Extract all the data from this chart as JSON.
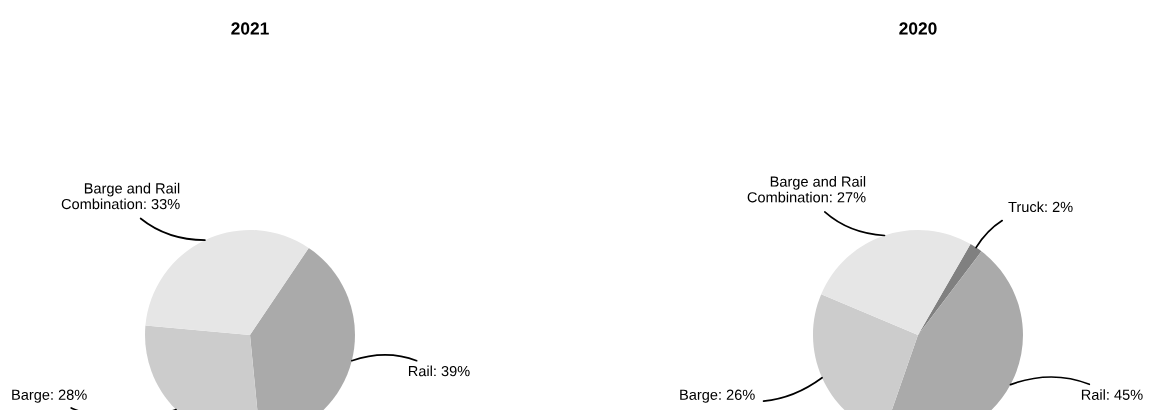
{
  "chart_data": [
    {
      "type": "pie",
      "title": "2021",
      "categories": [
        "Rail",
        "Barge",
        "Barge and Rail\nCombination"
      ],
      "values": [
        39,
        28,
        33
      ],
      "value_labels": [
        "39%",
        "28%",
        "33%"
      ],
      "colors": [
        "#aaaaaa",
        "#cccccc",
        "#e6e6e6"
      ]
    },
    {
      "type": "pie",
      "title": "2020",
      "categories": [
        "Truck",
        "Rail",
        "Barge",
        "Barge and Rail\nCombination"
      ],
      "values": [
        2,
        45,
        26,
        27
      ],
      "value_labels": [
        "2%",
        "45%",
        "26%",
        "27%"
      ],
      "colors": [
        "#808080",
        "#aaaaaa",
        "#cccccc",
        "#e6e6e6"
      ]
    }
  ]
}
